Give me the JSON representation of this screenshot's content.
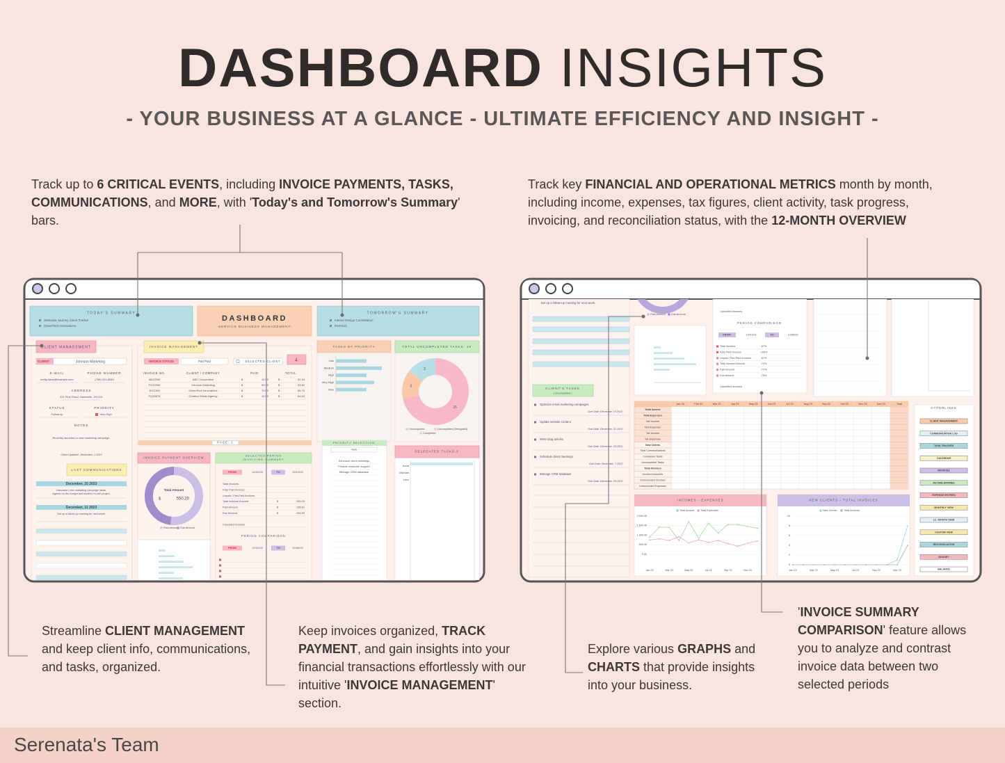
{
  "header": {
    "title_bold": "DASHBOARD",
    "title_light": "INSIGHTS",
    "subtitle": "- YOUR BUSINESS AT A GLANCE - ULTIMATE EFFICIENCY AND INSIGHT -"
  },
  "callouts": {
    "top_left": [
      {
        "text": "Track up to ",
        "bold": false
      },
      {
        "text": "6 CRITICAL EVENTS",
        "bold": true
      },
      {
        "text": ", including ",
        "bold": false
      },
      {
        "text": "INVOICE PAYMENTS, TASKS, COMMUNICATIONS",
        "bold": true
      },
      {
        "text": ", and ",
        "bold": false
      },
      {
        "text": "MORE",
        "bold": true
      },
      {
        "text": ", with '",
        "bold": false
      },
      {
        "text": "Today's and Tomorrow's Summary",
        "bold": true
      },
      {
        "text": "' bars.",
        "bold": false
      }
    ],
    "top_right": [
      {
        "text": "Track key ",
        "bold": false
      },
      {
        "text": "FINANCIAL AND OPERATIONAL METRICS",
        "bold": true
      },
      {
        "text": " month by month, including income, expenses, tax figures, client activity, task progress, invoicing, and reconciliation status, with the ",
        "bold": false
      },
      {
        "text": "12-MONTH OVERVIEW",
        "bold": true
      }
    ],
    "client_management": [
      {
        "text": "Streamline ",
        "bold": false
      },
      {
        "text": "CLIENT MANAGEMENT",
        "bold": true
      },
      {
        "text": " and keep client info, communications, and tasks, organized.",
        "bold": false
      }
    ],
    "invoice_management": [
      {
        "text": "Keep invoices organized, ",
        "bold": false
      },
      {
        "text": "TRACK PAYMENT",
        "bold": true
      },
      {
        "text": ", and gain insights into your financial transactions effortlessly with our intuitive '",
        "bold": false
      },
      {
        "text": "INVOICE MANAGEMENT",
        "bold": true
      },
      {
        "text": "' section.",
        "bold": false
      }
    ],
    "graphs": [
      {
        "text": "Explore various ",
        "bold": false
      },
      {
        "text": "GRAPHS",
        "bold": true
      },
      {
        "text": " and ",
        "bold": false
      },
      {
        "text": "CHARTS",
        "bold": true
      },
      {
        "text": " that provide insights into your business.",
        "bold": false
      }
    ],
    "invoice_summary": [
      {
        "text": "'",
        "bold": false
      },
      {
        "text": "INVOICE SUMMARY COMPARISON",
        "bold": true
      },
      {
        "text": "' feature allows you to analyze and contrast invoice data between two selected periods",
        "bold": false
      }
    ]
  },
  "left_window": {
    "todays_summary": "TODAY'S SUMMARY",
    "today_items": [
      "Serenata Journey Client Tracker",
      "GreenTech Innovations"
    ],
    "dashboard": "DASHBOARD",
    "dashboard_sub": "-SERVICE BUSINESS MANAGEMENT-",
    "tomorrows_summary": "TOMORROW'S SUMMARY",
    "tomorrow_items": [
      "Interior Design Consultation",
      "INV0123"
    ],
    "client_management": "CLIENT MANAGEMENT",
    "client_label": "CLIENT:",
    "client_name": "Johnson Marketing",
    "email_label": "E-MAIL",
    "email": "emily.davis@example.com",
    "phone_label": "PHONE NUMBER",
    "phone": "(789) 321-6540",
    "address_label": "ADDRESS",
    "address": "321 Pine Road, Hamsville, JKL321",
    "status_label": "STATUS",
    "status": "Follow up",
    "priority_label": "PRIORITY",
    "priority": "Very High",
    "notes_label": "NOTES",
    "note": "Recently launched a new marketing campaign.",
    "updated": "Client Updated : December, 1 2023",
    "last_communications": "LAST COMMUNICATIONS",
    "communications": [
      {
        "date": "December, 20 2023",
        "text": [
          "Discussed new marketing campaign ideas.",
          "Agreed on the budget and timeline for the project."
        ]
      },
      {
        "date": "December, 11 2023",
        "text": [
          "Set up a follow-up meeting for next week."
        ]
      }
    ],
    "invoice_management": "INVOICE MANAGEMENT",
    "invoice_status": "INVOICE STATUS",
    "status_value": "Part Paid",
    "selected_client": "SELECTED CLIENT",
    "selected_count": "4",
    "currency": "$",
    "invoice_columns": [
      "INVOICE NO.",
      "CLIENT / COMPANY",
      "PAID",
      "TOTAL"
    ],
    "invoices": [
      [
        "AB12345",
        "ABC Corporation",
        "10.00",
        "51.19"
      ],
      [
        "FG12345",
        "Johnson Marketing",
        "50.00",
        "63.84"
      ],
      [
        "JK12345",
        "GreenTech Innovations",
        "70.00",
        "89.76"
      ],
      [
        "PQ45678",
        "Creative Minds Agency",
        "10.00",
        "64.84"
      ]
    ],
    "page": "PAGE: 1",
    "tasks_by_priority": {
      "type": "bar",
      "title": "TASKS BY PRIORITY",
      "categories": [
        "Low",
        "Medium",
        "High",
        "Very High",
        "Now"
      ],
      "values": [
        2,
        3,
        2,
        2.5,
        2
      ],
      "color": "#a9d7df"
    },
    "uncompleted_tasks": {
      "type": "pie",
      "title": "TOTAL UNCOMPLETED TASKS: 18",
      "values": [
        3,
        3,
        15
      ],
      "colors": [
        "#b8dfe6",
        "#f9c9a8",
        "#f8b8c8"
      ],
      "legend": [
        "Completed",
        "Uncompleted (Delegated)",
        "Uncompleted"
      ]
    },
    "payment_overview": {
      "type": "pie",
      "title": "INVOICE PAYMENT OVERVIEW",
      "center_label": "Total Amount",
      "total": "550.20",
      "values": [
        285.61,
        264.59
      ],
      "colors": [
        "#cbbfe5",
        "#9e8ccb"
      ],
      "legend": [
        "Paid Amount",
        "Due Amount"
      ]
    },
    "period_summary": [
      "SELECTED PERIOD",
      "INVOICING SUMMARY"
    ],
    "from": "FROM",
    "from_date": "12/01/23",
    "to": "TO",
    "to_date": "12/21/23",
    "period_rows": [
      {
        "label": "Total Invoices"
      },
      {
        "label": "Fully Paid Invoices"
      },
      {
        "label": "Unpaid / Part-Paid Invoices"
      },
      {
        "label": "Total Invoiced Amount",
        "value": "550.20"
      },
      {
        "label": "Paid Amount",
        "value": "285.61"
      },
      {
        "label": "Due Amount",
        "value": "264.59"
      },
      {
        "label": "Cancelled Invoices"
      }
    ],
    "period_comparison": "PERIOD COMPARISON",
    "compare_from_date": "12/01/23",
    "compare_to_date": "12/06/23",
    "priority_selection": "PRIORITY SELECTION",
    "priority_value": "Now",
    "priority_tasks": [
      "Schedule client meetings",
      "Provide customer support",
      "Manage CRM database"
    ],
    "delegated_tasks": "DELEGATED TASKS:3",
    "delegates": [
      "Anna",
      "Michael",
      "John"
    ]
  },
  "right_window": {
    "followup": "Set up a follow-up meeting for next week.",
    "clients_tasks": "CLIENT'S TASKS",
    "uncompleted": "( Uncompleted )",
    "tasks": [
      {
        "text": "Optimize email marketing campaigns",
        "due": "Due Date: December, 14 2023"
      },
      {
        "text": "Update website content",
        "due": "Due Date: December, 21 2023"
      },
      {
        "text": "Write blog articles",
        "due": "Due Date: December, 29 2023"
      },
      {
        "text": "Schedule client meetings",
        "due": "Due Date: December, 7 2023"
      },
      {
        "text": "Manage CRM database",
        "due": "Due Date: December, 29 2023"
      }
    ],
    "cancelled": "Cancelled Invoices",
    "period_comparison": "PERIOD COMPARISON",
    "from": "FROM",
    "from_date": "12/01/23",
    "to": "TO",
    "to_date": "12/06/23",
    "period_rows": [
      {
        "label": "Total Invoices",
        "change": "-67%"
      },
      {
        "label": "Fully Paid Invoices",
        "change": "-100%"
      },
      {
        "label": "Unpaid / Part-Paid Invoices",
        "change": "-57%"
      },
      {
        "label": "Total Invoiced Amount",
        "change": "-72%"
      },
      {
        "label": "Paid Amount",
        "change": "-72%"
      },
      {
        "label": "Due Amount",
        "change": "-75%"
      }
    ],
    "table": {
      "columns": [
        "Jan 23",
        "Feb 23",
        "Mar 23",
        "Apr 23",
        "May 23",
        "Jun 23",
        "Jul 23",
        "Aug 23",
        "Sep 23",
        "Oct 23",
        "Nov 23",
        "Dec 23",
        "Total"
      ],
      "rows": [
        "Total Income",
        "Total Expenses",
        "Net Income",
        "Net Expenses",
        "Tax Income",
        "Tax Expenses",
        "New Clients",
        "Total Communications",
        "Completed Tasks",
        "Uncompleted Tasks",
        "Total Invoices",
        "Invoiced Amounts",
        "Unreconciled Incomes",
        "Unreconciled Expenses"
      ]
    },
    "incomes_expenses": {
      "type": "line",
      "title": "INCOMES - EXPENSES",
      "categories": [
        "Jan 23",
        null,
        "Mar 23",
        null,
        "May 23",
        null,
        "Jul 23",
        null,
        "Sep 23",
        null,
        "Nov 23",
        null
      ],
      "ylim": [
        0,
        2000
      ],
      "yticks": [
        {
          "value": 0,
          "label": "0.00"
        },
        {
          "value": 500,
          "label": "500.00"
        },
        {
          "value": 1000,
          "label": "1,000.00"
        },
        {
          "value": 1500,
          "label": "1,500.00"
        },
        {
          "value": 2000,
          "label": "2,000.00"
        }
      ],
      "series": [
        {
          "name": "Total Income",
          "color": "#9fdc9a",
          "values": [
            898,
            1431,
            1410,
            729,
            1713,
            843,
            1630,
            1111,
            1561,
            1561,
            1465,
            1361
          ]
        },
        {
          "name": "Total Expenses",
          "color": "#f4a3b8",
          "values": [
            752,
            808,
            724,
            924,
            599,
            753,
            624,
            724,
            559,
            425,
            582,
            700
          ]
        }
      ]
    },
    "new_clients": {
      "type": "line",
      "title": "NEW CLIENTS - TOTAL INVOICES",
      "categories": [
        "Jan 23",
        null,
        "Mar 23",
        null,
        "May 23",
        null,
        "Jul 23",
        null,
        "Sep 23",
        null,
        "Nov 23",
        null
      ],
      "ylim": [
        0,
        10
      ],
      "yticks": [
        0,
        2,
        4,
        6,
        8,
        10
      ],
      "series": [
        {
          "name": "New Clients",
          "color": "#9fd3e0",
          "values": [
            0,
            0,
            0,
            0,
            0,
            0,
            0,
            0,
            0,
            0,
            1,
            8
          ]
        },
        {
          "name": "Total Invoices",
          "color": "#b5b5b5",
          "values": [
            0,
            0,
            0,
            0,
            0,
            0,
            0,
            0,
            0,
            0,
            0,
            4
          ]
        }
      ]
    },
    "hyperlinks": {
      "title": "HYPERLINKS",
      "items": [
        {
          "label": "CLIENT MANAGEMENT",
          "color": "#f9c9a8"
        },
        {
          "label": "COMMUNICATION LOG",
          "color": "#e3f1f5"
        },
        {
          "label": "TASK TRACKER",
          "color": "#a9d7df"
        },
        {
          "label": "CALENDAR",
          "color": "#f6f0c8"
        },
        {
          "label": "INVOICES",
          "color": "#cbbfe5"
        },
        {
          "label": "INCOME ENTRIES",
          "color": "#c9ebc1"
        },
        {
          "label": "EXPENSE ENTRIES",
          "color": "#f6b6c3"
        },
        {
          "label": "MONTHLY VIEW",
          "color": "#f6e9b0"
        },
        {
          "label": "12 - MONTH VIEW",
          "color": "#e3f1f5"
        },
        {
          "label": "CUSTOM VIEW",
          "color": "#f6e9b0"
        },
        {
          "label": "RECONCILIATION",
          "color": "#a9d7df"
        },
        {
          "label": "BUDGET",
          "color": "#f6b6c3"
        },
        {
          "label": "BALANCE",
          "color": "#ffffff"
        }
      ]
    }
  },
  "footer": "Serenata's Team"
}
